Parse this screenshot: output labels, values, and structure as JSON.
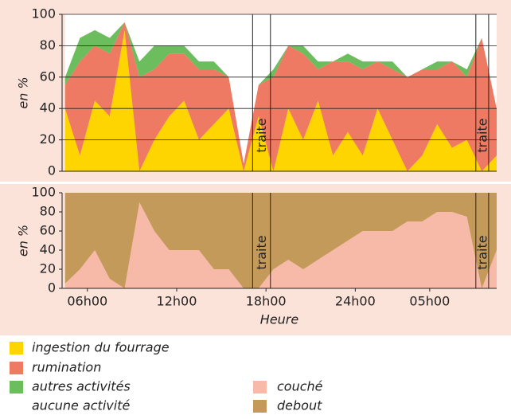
{
  "chart_data": [
    {
      "type": "stacked-area",
      "ylabel": "en %",
      "x": [
        4.5,
        5.5,
        6.5,
        7.5,
        8.5,
        9.5,
        10.5,
        11.5,
        12.5,
        13.5,
        14.5,
        15.5,
        16.5,
        17.5,
        18.5,
        19.5,
        20.5,
        21.5,
        22.5,
        23.5,
        24.5,
        25.5,
        26.5,
        27.5,
        28.5,
        29.5,
        30.5,
        31.5,
        32.5,
        33.5
      ],
      "xlim": [
        4.3,
        33.5
      ],
      "ylim": [
        0,
        100
      ],
      "yticks": [
        0,
        20,
        40,
        60,
        80,
        100
      ],
      "grid": true,
      "series": [
        {
          "name": "ingestion du fourrage",
          "color": "#ffd500",
          "values": [
            40,
            10,
            45,
            35,
            90,
            0,
            20,
            35,
            45,
            20,
            30,
            40,
            0,
            35,
            0,
            40,
            20,
            45,
            10,
            25,
            10,
            40,
            20,
            0,
            10,
            30,
            15,
            20,
            0,
            10
          ]
        },
        {
          "name": "rumination",
          "color": "#ef7a63",
          "values": [
            15,
            60,
            35,
            40,
            5,
            60,
            45,
            40,
            30,
            45,
            35,
            20,
            5,
            20,
            60,
            40,
            55,
            20,
            60,
            45,
            55,
            30,
            45,
            60,
            55,
            35,
            55,
            40,
            85,
            30
          ]
        },
        {
          "name": "autres activités",
          "color": "#6cbd5e",
          "values": [
            5,
            15,
            10,
            10,
            0,
            10,
            15,
            5,
            5,
            5,
            5,
            0,
            0,
            0,
            5,
            0,
            5,
            5,
            0,
            5,
            5,
            0,
            5,
            0,
            0,
            5,
            0,
            5,
            0,
            0
          ]
        },
        {
          "name": "aucune activité",
          "color": "#ffffff",
          "values": [
            40,
            15,
            10,
            15,
            5,
            30,
            20,
            20,
            20,
            30,
            30,
            40,
            95,
            45,
            35,
            20,
            20,
            30,
            30,
            25,
            30,
            30,
            30,
            40,
            35,
            30,
            30,
            35,
            15,
            60
          ]
        }
      ],
      "annotations": [
        {
          "label": "traite",
          "x": [
            17.1,
            18.3
          ]
        },
        {
          "label": "traite",
          "x": [
            32.1,
            32.96
          ]
        }
      ]
    },
    {
      "type": "stacked-area",
      "ylabel": "en %",
      "xlabel": "Heure",
      "x": [
        4.5,
        5.5,
        6.5,
        7.5,
        8.5,
        9.5,
        10.5,
        11.5,
        12.5,
        13.5,
        14.5,
        15.5,
        16.5,
        17.5,
        18.5,
        19.5,
        20.5,
        21.5,
        22.5,
        23.5,
        24.5,
        25.5,
        26.5,
        27.5,
        28.5,
        29.5,
        30.5,
        31.5,
        32.5,
        33.5
      ],
      "xlim": [
        4.3,
        33.5
      ],
      "ylim": [
        0,
        100
      ],
      "yticks": [
        0,
        20,
        40,
        60,
        80,
        100
      ],
      "grid": false,
      "xticks": [
        {
          "value": 6,
          "label": "06h00"
        },
        {
          "value": 12,
          "label": "12h00"
        },
        {
          "value": 18,
          "label": "18h00"
        },
        {
          "value": 24,
          "label": "24h00"
        },
        {
          "value": 29,
          "label": "05h00"
        }
      ],
      "series": [
        {
          "name": "couché",
          "color": "#f7b9a8",
          "values": [
            5,
            20,
            40,
            10,
            0,
            90,
            60,
            40,
            40,
            40,
            20,
            20,
            0,
            0,
            20,
            30,
            20,
            30,
            40,
            50,
            60,
            60,
            60,
            70,
            70,
            80,
            80,
            75,
            0,
            40
          ]
        },
        {
          "name": "debout",
          "color": "#c49a5a",
          "values": [
            95,
            80,
            60,
            90,
            100,
            10,
            40,
            60,
            60,
            60,
            80,
            80,
            100,
            100,
            80,
            70,
            80,
            70,
            60,
            50,
            40,
            40,
            40,
            30,
            30,
            20,
            20,
            25,
            100,
            60
          ]
        }
      ],
      "annotations": [
        {
          "label": "traite",
          "x": [
            17.1,
            18.3
          ]
        },
        {
          "label": "traite",
          "x": [
            32.1,
            32.96
          ]
        }
      ]
    }
  ]
}
